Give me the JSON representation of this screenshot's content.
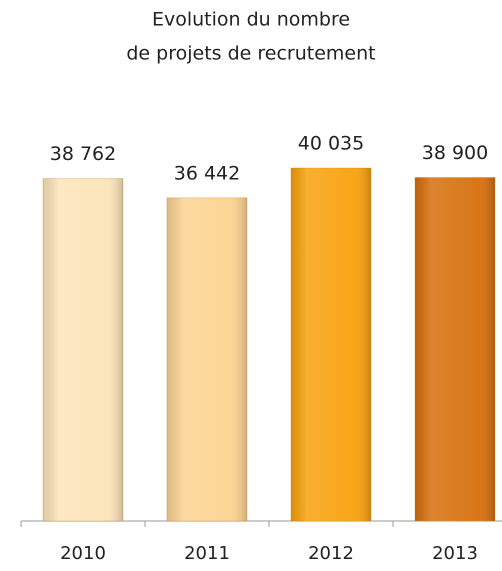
{
  "chart_data": {
    "type": "bar",
    "title": [
      "Evolution du nombre",
      "de projets de recrutement"
    ],
    "categories": [
      "2010",
      "2011",
      "2012",
      "2013"
    ],
    "values": [
      38762,
      36442,
      40035,
      38900
    ],
    "value_labels": [
      "38 762",
      "36 442",
      "40 035",
      "38 900"
    ],
    "colors": [
      "#fbe4b8",
      "#fcd390",
      "#f8a10c",
      "#d66f0c"
    ],
    "ylim": [
      -2500,
      41000
    ]
  }
}
